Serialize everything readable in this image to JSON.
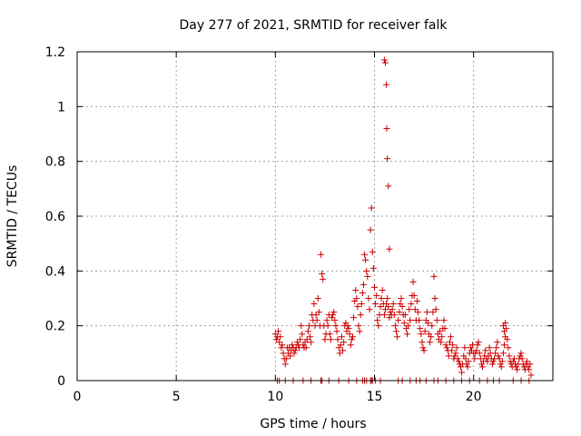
{
  "chart_data": {
    "type": "scatter",
    "title": "Day 277 of 2021, SRMTID for receiver falk",
    "xlabel": "GPS time / hours",
    "ylabel": "SRMTID / TECUs",
    "xlim": [
      0,
      24
    ],
    "ylim": [
      0,
      1.2
    ],
    "x_ticks": [
      0,
      5,
      10,
      15,
      20
    ],
    "y_ticks": [
      0,
      0.2,
      0.4,
      0.6,
      0.8,
      1,
      1.2
    ],
    "x_tick_labels": [
      "0",
      "5",
      "10",
      "15",
      "20"
    ],
    "y_tick_labels": [
      "0",
      "0.2",
      "0.4",
      "0.6",
      "0.8",
      "1",
      "1.2"
    ],
    "grid": true,
    "marker": "plus",
    "series": [
      {
        "name": "SRMTID",
        "color": "#cc0000",
        "x": [
          10.0,
          10.05,
          10.1,
          10.15,
          10.2,
          10.25,
          10.3,
          10.35,
          10.4,
          10.45,
          10.5,
          10.55,
          10.6,
          10.65,
          10.7,
          10.75,
          10.8,
          10.85,
          10.9,
          10.95,
          11.0,
          11.05,
          11.1,
          11.15,
          11.2,
          11.25,
          11.3,
          11.35,
          11.4,
          11.45,
          11.5,
          11.55,
          11.6,
          11.65,
          11.7,
          11.75,
          11.8,
          11.85,
          11.9,
          11.95,
          12.0,
          12.05,
          12.1,
          12.15,
          12.2,
          12.25,
          12.3,
          12.35,
          12.4,
          12.45,
          12.5,
          12.55,
          12.6,
          12.65,
          12.7,
          12.75,
          12.8,
          12.85,
          12.9,
          12.95,
          13.0,
          13.05,
          13.1,
          13.15,
          13.2,
          13.25,
          13.3,
          13.35,
          13.4,
          13.45,
          13.5,
          13.55,
          13.6,
          13.65,
          13.7,
          13.75,
          13.8,
          13.85,
          13.9,
          13.95,
          14.0,
          14.05,
          14.1,
          14.15,
          14.2,
          14.25,
          14.3,
          14.35,
          14.4,
          14.45,
          14.5,
          14.55,
          14.6,
          14.65,
          14.7,
          14.75,
          14.8,
          14.85,
          14.9,
          14.95,
          15.0,
          15.05,
          15.1,
          15.15,
          15.2,
          15.25,
          15.3,
          15.35,
          15.4,
          15.45,
          15.5,
          15.55,
          15.6,
          15.65,
          15.7,
          15.75,
          15.8,
          15.85,
          15.9,
          15.95,
          16.0,
          16.05,
          16.1,
          16.15,
          16.2,
          16.25,
          16.3,
          16.35,
          16.4,
          16.45,
          16.5,
          16.55,
          16.6,
          16.65,
          16.7,
          16.75,
          16.8,
          16.85,
          16.9,
          16.95,
          17.0,
          17.05,
          17.1,
          17.15,
          17.2,
          17.25,
          17.3,
          17.35,
          17.4,
          17.45,
          17.5,
          17.55,
          17.6,
          17.65,
          17.7,
          17.75,
          17.8,
          17.85,
          17.9,
          17.95,
          18.0,
          18.05,
          18.1,
          18.15,
          18.2,
          18.25,
          18.3,
          18.35,
          18.4,
          18.45,
          18.5,
          18.55,
          18.6,
          18.65,
          18.7,
          18.75,
          18.8,
          18.85,
          18.9,
          18.95,
          19.0,
          19.05,
          19.1,
          19.15,
          19.2,
          19.25,
          19.3,
          19.35,
          19.4,
          19.45,
          19.5,
          19.55,
          19.6,
          19.65,
          19.7,
          19.75,
          19.8,
          19.85,
          19.9,
          19.95,
          20.0,
          20.05,
          20.1,
          20.15,
          20.2,
          20.25,
          20.3,
          20.35,
          20.4,
          20.45,
          20.5,
          20.55,
          20.6,
          20.65,
          20.7,
          20.75,
          20.8,
          20.85,
          20.9,
          20.95,
          21.0,
          21.05,
          21.1,
          21.15,
          21.2,
          21.25,
          21.3,
          21.35,
          21.4,
          21.45,
          21.5,
          21.55,
          21.6,
          21.65,
          21.7,
          21.75,
          21.8,
          21.85,
          21.9,
          21.95,
          22.0,
          22.05,
          22.1,
          22.15,
          22.2,
          22.25,
          22.3,
          22.35,
          22.4,
          22.45,
          22.5,
          22.55,
          22.6,
          22.65,
          22.7,
          22.75,
          22.8,
          22.85,
          22.9,
          10.1,
          10.2,
          10.5,
          10.9,
          11.4,
          11.8,
          12.3,
          12.35,
          12.7,
          13.2,
          13.7,
          14.1,
          14.4,
          14.5,
          14.6,
          14.8,
          14.85,
          14.9,
          15.05,
          15.3,
          15.5,
          15.55,
          15.6,
          15.62,
          15.65,
          15.7,
          15.75,
          16.2,
          16.4,
          16.8,
          17.1,
          17.3,
          17.6,
          18.0,
          18.2,
          18.6,
          19.0,
          19.4,
          19.8,
          20.3,
          20.7,
          21.0,
          21.3,
          21.5,
          21.55,
          21.6,
          22.0,
          22.4,
          22.8
        ],
        "y": [
          0.17,
          0.15,
          0.16,
          0.18,
          0.14,
          0.16,
          0.12,
          0.13,
          0.1,
          0.08,
          0.06,
          0.08,
          0.12,
          0.1,
          0.12,
          0.09,
          0.11,
          0.13,
          0.12,
          0.1,
          0.11,
          0.12,
          0.14,
          0.13,
          0.12,
          0.15,
          0.2,
          0.17,
          0.13,
          0.12,
          0.14,
          0.12,
          0.15,
          0.18,
          0.2,
          0.16,
          0.14,
          0.24,
          0.22,
          0.28,
          0.2,
          0.24,
          0.22,
          0.3,
          0.25,
          0.2,
          0.46,
          0.39,
          0.37,
          0.2,
          0.15,
          0.17,
          0.22,
          0.2,
          0.24,
          0.17,
          0.15,
          0.23,
          0.24,
          0.25,
          0.22,
          0.2,
          0.18,
          0.15,
          0.12,
          0.1,
          0.13,
          0.16,
          0.11,
          0.14,
          0.2,
          0.21,
          0.18,
          0.2,
          0.19,
          0.17,
          0.13,
          0.15,
          0.16,
          0.23,
          0.29,
          0.33,
          0.3,
          0.27,
          0.2,
          0.18,
          0.24,
          0.28,
          0.32,
          0.35,
          0.46,
          0.44,
          0.4,
          0.38,
          0.3,
          0.26,
          0.55,
          0.63,
          0.47,
          0.41,
          0.34,
          0.28,
          0.31,
          0.22,
          0.2,
          0.24,
          0.27,
          0.3,
          0.33,
          0.28,
          0.24,
          0.26,
          0.28,
          0.3,
          0.27,
          0.23,
          0.25,
          0.24,
          0.26,
          0.28,
          0.24,
          0.2,
          0.18,
          0.16,
          0.22,
          0.25,
          0.28,
          0.3,
          0.27,
          0.24,
          0.21,
          0.24,
          0.19,
          0.17,
          0.2,
          0.26,
          0.22,
          0.28,
          0.31,
          0.36,
          0.31,
          0.26,
          0.22,
          0.29,
          0.25,
          0.22,
          0.19,
          0.17,
          0.14,
          0.12,
          0.11,
          0.18,
          0.22,
          0.25,
          0.21,
          0.17,
          0.14,
          0.16,
          0.2,
          0.25,
          0.38,
          0.3,
          0.26,
          0.22,
          0.17,
          0.15,
          0.18,
          0.14,
          0.16,
          0.19,
          0.22,
          0.19,
          0.13,
          0.12,
          0.11,
          0.09,
          0.14,
          0.16,
          0.11,
          0.13,
          0.08,
          0.09,
          0.1,
          0.12,
          0.08,
          0.07,
          0.06,
          0.05,
          0.03,
          0.06,
          0.09,
          0.12,
          0.08,
          0.06,
          0.05,
          0.07,
          0.1,
          0.12,
          0.11,
          0.13,
          0.1,
          0.08,
          0.1,
          0.11,
          0.13,
          0.14,
          0.1,
          0.08,
          0.06,
          0.05,
          0.07,
          0.09,
          0.11,
          0.08,
          0.07,
          0.09,
          0.12,
          0.1,
          0.08,
          0.06,
          0.07,
          0.08,
          0.1,
          0.12,
          0.14,
          0.09,
          0.08,
          0.06,
          0.05,
          0.07,
          0.1,
          0.13,
          0.16,
          0.19,
          0.15,
          0.12,
          0.09,
          0.07,
          0.06,
          0.05,
          0.07,
          0.08,
          0.06,
          0.05,
          0.04,
          0.06,
          0.08,
          0.09,
          0.1,
          0.08,
          0.06,
          0.05,
          0.04,
          0.06,
          0.07,
          0.05,
          0.04,
          0.06,
          0.02,
          0.0,
          0.0,
          0.0,
          0.0,
          0.0,
          0.0,
          0.0,
          0.0,
          0.0,
          0.0,
          0.0,
          0.0,
          0.0,
          0.0,
          0.0,
          0.0,
          0.0,
          0.0,
          0.0,
          0.0,
          1.17,
          1.16,
          1.08,
          0.92,
          0.81,
          0.71,
          0.48,
          0.0,
          0.0,
          0.0,
          0.0,
          0.0,
          0.0,
          0.0,
          0.0,
          0.0,
          0.0,
          0.0,
          0.0,
          0.0,
          0.0,
          0.0,
          0.0,
          0.2,
          0.18,
          0.21,
          0.0,
          0.0,
          0.0
        ]
      }
    ]
  }
}
